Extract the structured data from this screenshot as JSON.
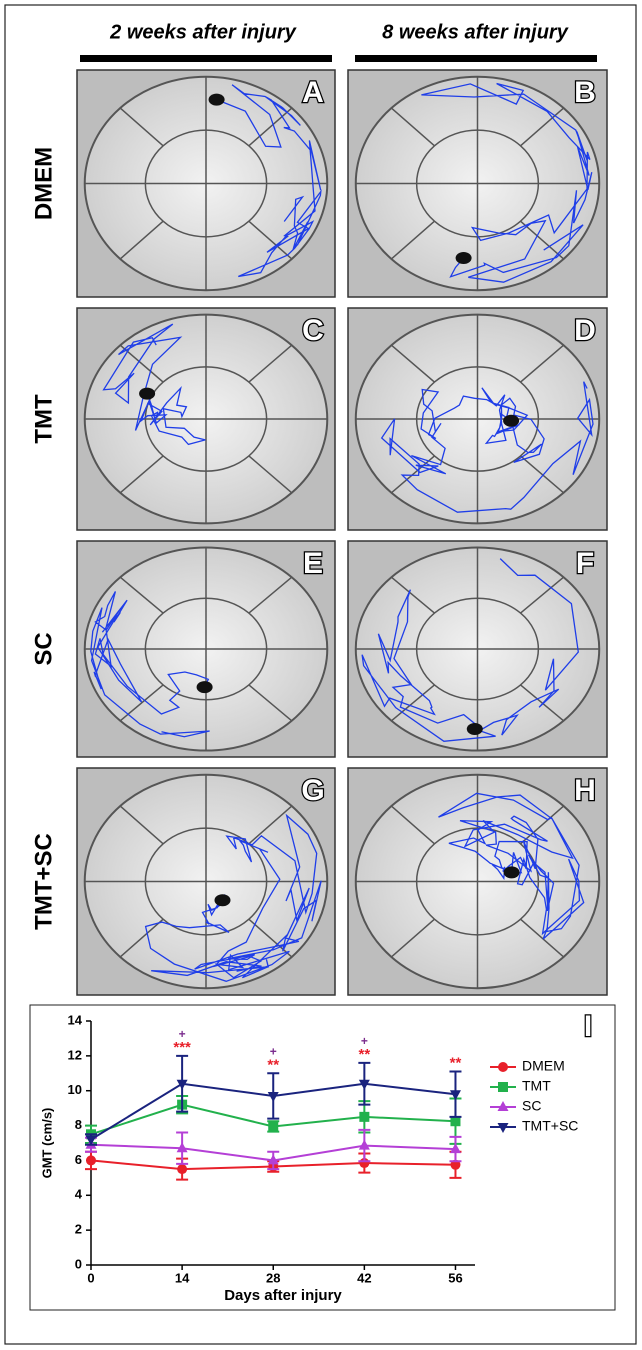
{
  "figure": {
    "columns": [
      "2 weeks after injury",
      "8 weeks after injury"
    ],
    "rows": [
      "DMEM",
      "TMT",
      "SC",
      "TMT+SC"
    ],
    "panels": [
      "A",
      "B",
      "C",
      "D",
      "E",
      "F",
      "G",
      "H"
    ]
  },
  "chart_data": {
    "type": "line",
    "label": "I",
    "x_label": "Days after injury",
    "y_label": "GMT (cm/s)",
    "x": [
      0,
      14,
      28,
      42,
      56
    ],
    "xlim": [
      0,
      59
    ],
    "xticks": [
      0,
      14,
      28,
      42,
      56
    ],
    "ylim": [
      0,
      14
    ],
    "yticks": [
      0,
      2,
      4,
      6,
      8,
      10,
      12,
      14
    ],
    "series": [
      {
        "name": "DMEM",
        "color": "#e8202a",
        "marker": "circle",
        "values": [
          6.0,
          5.5,
          5.65,
          5.85,
          5.75
        ],
        "errors": [
          0.5,
          0.6,
          0.3,
          0.55,
          0.75
        ]
      },
      {
        "name": "TMT",
        "color": "#22b14c",
        "marker": "square",
        "values": [
          7.5,
          9.2,
          7.95,
          8.5,
          8.25
        ],
        "errors": [
          0.5,
          0.5,
          0.3,
          0.9,
          1.3
        ]
      },
      {
        "name": "SC",
        "color": "#b43fd6",
        "marker": "triangle",
        "values": [
          6.9,
          6.7,
          6.0,
          6.85,
          6.65
        ],
        "errors": [
          0.4,
          0.9,
          0.5,
          0.9,
          0.7
        ]
      },
      {
        "name": "TMT+SC",
        "color": "#1a237e",
        "marker": "triangle-down",
        "values": [
          7.2,
          10.4,
          9.7,
          10.4,
          9.8
        ],
        "errors": [
          0.3,
          1.6,
          1.3,
          1.2,
          1.3
        ]
      }
    ],
    "annotation_colors": [
      "#e8202a",
      "#7b2d8e"
    ],
    "annotations": [
      {
        "x": 14,
        "labels": [
          "***",
          "+"
        ]
      },
      {
        "x": 28,
        "labels": [
          "**",
          "+"
        ]
      },
      {
        "x": 42,
        "labels": [
          "**",
          "+"
        ]
      },
      {
        "x": 56,
        "labels": [
          "**"
        ]
      }
    ]
  }
}
